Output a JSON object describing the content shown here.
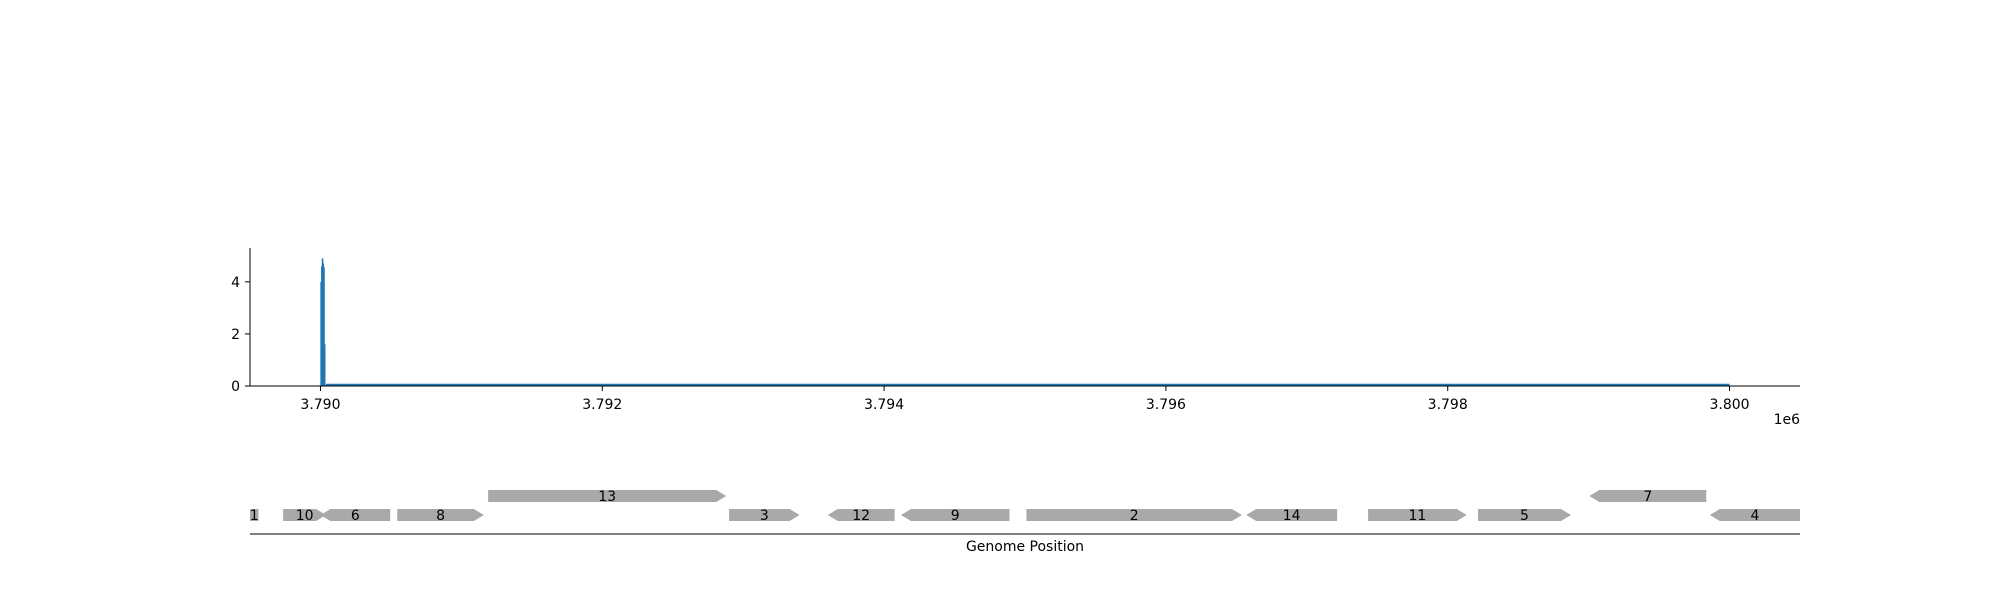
{
  "chart_data": [
    {
      "type": "bar",
      "title": "",
      "xlabel": "",
      "ylabel": "",
      "offset_label": "1e6",
      "xlim": [
        3789500,
        3800500
      ],
      "ylim": [
        0,
        5.3
      ],
      "x_ticks": [
        3790000,
        3792000,
        3794000,
        3796000,
        3798000,
        3800000
      ],
      "x_tick_labels": [
        "3.790",
        "3.792",
        "3.794",
        "3.796",
        "3.798",
        "3.800"
      ],
      "y_ticks": [
        0,
        2,
        4
      ],
      "y_tick_labels": [
        "0",
        "2",
        "4"
      ],
      "grid": false,
      "color": "#1f77b4",
      "x": [
        3790005,
        3790010,
        3790015,
        3790020,
        3790025,
        3790030,
        3790035,
        3790040
      ],
      "values": [
        4.0,
        4.6,
        4.9,
        4.7,
        4.55,
        1.6,
        0.05,
        0.03
      ],
      "baseline": {
        "from": 3790040,
        "to": 3800000,
        "value": 0.03
      }
    },
    {
      "type": "gene-track",
      "xlabel": "Genome Position",
      "color": "#a9a9a9",
      "genes": [
        {
          "label": "1",
          "start": 3789500,
          "end": 3789560,
          "strand": "none",
          "row": 0
        },
        {
          "label": "10",
          "start": 3789735,
          "end": 3790040,
          "strand": "+",
          "row": 0
        },
        {
          "label": "6",
          "start": 3790000,
          "end": 3790495,
          "strand": "-",
          "row": 0
        },
        {
          "label": "8",
          "start": 3790545,
          "end": 3791160,
          "strand": "+",
          "row": 0
        },
        {
          "label": "13",
          "start": 3791190,
          "end": 3792880,
          "strand": "+",
          "row": 1
        },
        {
          "label": "3",
          "start": 3792900,
          "end": 3793400,
          "strand": "+",
          "row": 0
        },
        {
          "label": "12",
          "start": 3793600,
          "end": 3794075,
          "strand": "-",
          "row": 0
        },
        {
          "label": "9",
          "start": 3794120,
          "end": 3794890,
          "strand": "-",
          "row": 0
        },
        {
          "label": "2",
          "start": 3795010,
          "end": 3796540,
          "strand": "+",
          "row": 0
        },
        {
          "label": "14",
          "start": 3796570,
          "end": 3797215,
          "strand": "-",
          "row": 0
        },
        {
          "label": "11",
          "start": 3797435,
          "end": 3798135,
          "strand": "+",
          "row": 0
        },
        {
          "label": "5",
          "start": 3798215,
          "end": 3798875,
          "strand": "+",
          "row": 0
        },
        {
          "label": "7",
          "start": 3799005,
          "end": 3799835,
          "strand": "-",
          "row": 1
        },
        {
          "label": "4",
          "start": 3799860,
          "end": 3800500,
          "strand": "-",
          "row": 0
        }
      ]
    }
  ]
}
